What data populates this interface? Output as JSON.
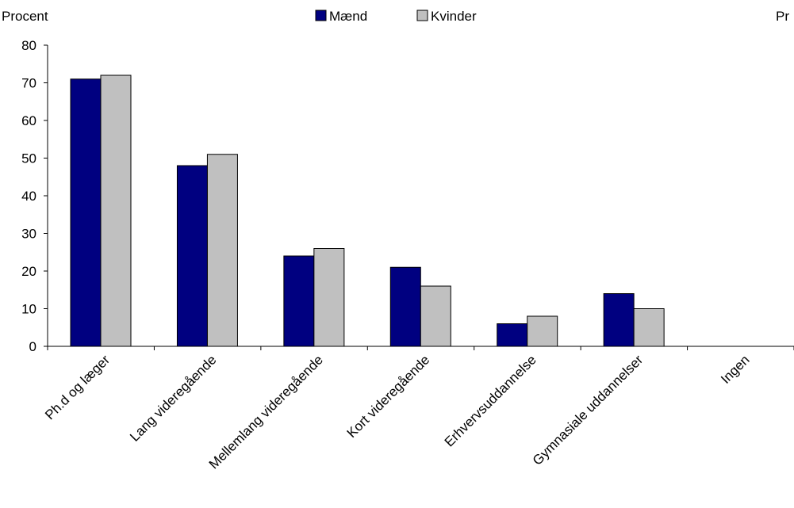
{
  "chart_data": {
    "type": "bar",
    "ylabel_left": "Procent",
    "ylabel_right": "Pr",
    "categories": [
      "Ph.d og læger",
      "Lang videregående",
      "Mellemlang videregående",
      "Kort videregående",
      "Erhvervsuddannelse",
      "Gymnasiale uddannelser",
      "Ingen"
    ],
    "series": [
      {
        "name": "Mænd",
        "color": "#000080",
        "values": [
          71,
          48,
          24,
          21,
          6,
          14,
          0
        ]
      },
      {
        "name": "Kvinder",
        "color": "#c0c0c0",
        "values": [
          72,
          51,
          26,
          16,
          8,
          10,
          0
        ]
      }
    ],
    "ylim": [
      0,
      80
    ],
    "yticks": [
      0,
      10,
      20,
      30,
      40,
      50,
      60,
      70,
      80
    ],
    "legend": "top-center",
    "grid": false
  }
}
